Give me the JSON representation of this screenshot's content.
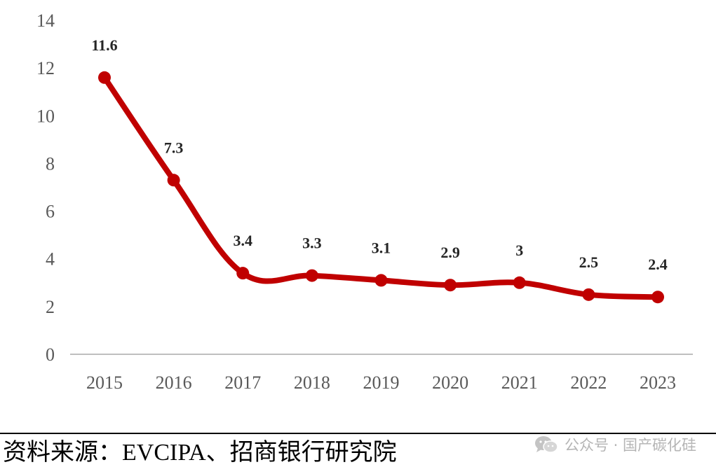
{
  "chart_data": {
    "type": "line",
    "categories": [
      "2015",
      "2016",
      "2017",
      "2018",
      "2019",
      "2020",
      "2021",
      "2022",
      "2023"
    ],
    "values": [
      11.6,
      7.3,
      3.4,
      3.3,
      3.1,
      2.9,
      3,
      2.5,
      2.4
    ],
    "data_labels": [
      "11.6",
      "7.3",
      "3.4",
      "3.3",
      "3.1",
      "2.9",
      "3",
      "2.5",
      "2.4"
    ],
    "yticks": [
      "0",
      "2",
      "4",
      "6",
      "8",
      "10",
      "12",
      "14"
    ],
    "ylim": [
      0,
      14
    ],
    "title": "",
    "xlabel": "",
    "ylabel": "",
    "grid": false,
    "legend": "none",
    "smooth": true,
    "line_color": "#c00000",
    "axis_color": "#bfbfbf"
  },
  "footer": {
    "source": "资料来源：EVCIPA、招商银行研究院",
    "watermark": "公众号 · 国产碳化硅",
    "watermark_icon": "wechat-icon"
  }
}
